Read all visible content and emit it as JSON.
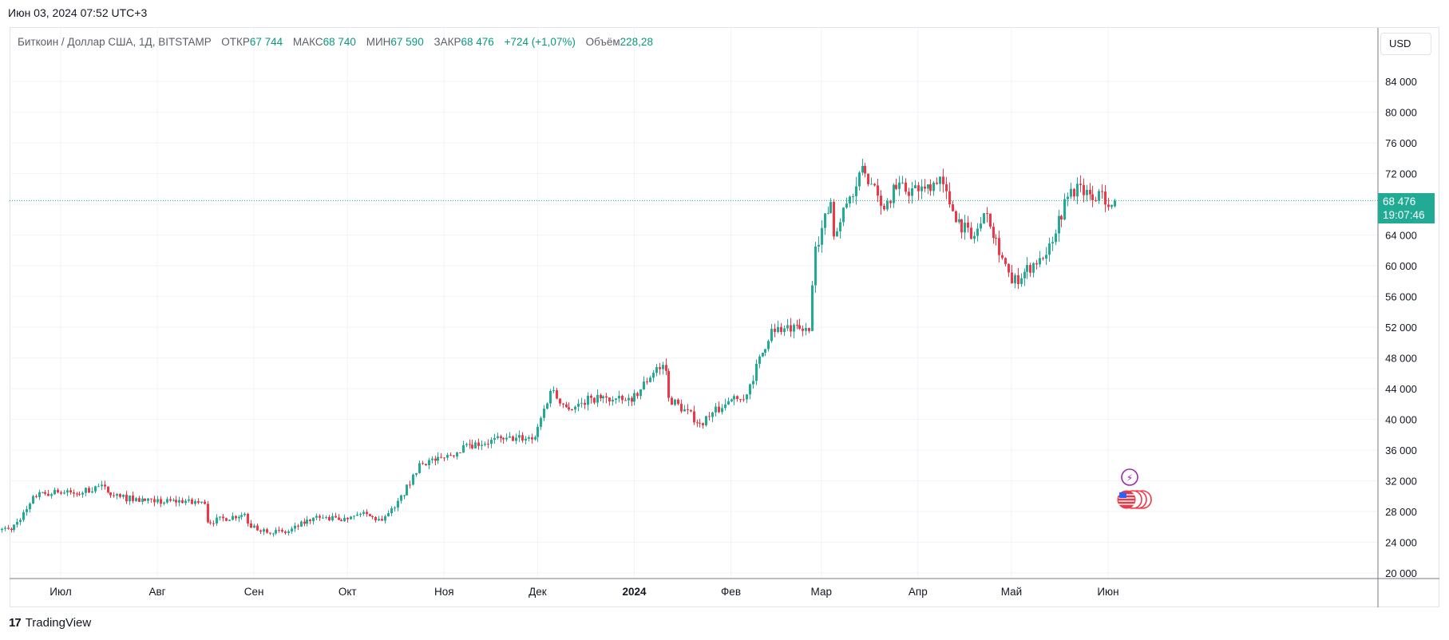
{
  "header": {
    "timestamp": "Июн 03, 2024 07:52 UTC+3"
  },
  "legend": {
    "symbol": "Биткоин / Доллар США, 1Д, BITSTAMP",
    "open_label": "ОТКР",
    "open_value": "67 744",
    "high_label": "МАКС",
    "high_value": "68 740",
    "low_label": "МИН",
    "low_value": "67 590",
    "close_label": "ЗАКР",
    "close_value": "68 476",
    "change": "+724 (+1,07%)",
    "volume_label": "Объём",
    "volume_value": "228,28"
  },
  "currency": "USD",
  "price_tag": {
    "price": "68 476",
    "countdown": "19:07:46"
  },
  "footer": {
    "brand": "TradingView"
  },
  "colors": {
    "up": "#22ab94",
    "down": "#f23645",
    "grid": "#f0f3fa",
    "axis_text": "#131722",
    "price_line": "#22ab94"
  },
  "chart_data": {
    "type": "candlestick",
    "title": "Биткоин / Доллар США, 1Д, BITSTAMP",
    "y_axis": {
      "min": 18000,
      "max": 88000,
      "ticks": [
        20000,
        24000,
        28000,
        32000,
        36000,
        40000,
        44000,
        48000,
        52000,
        56000,
        60000,
        64000,
        68000,
        72000,
        76000,
        80000,
        84000
      ],
      "tick_labels": [
        "20 000",
        "24 000",
        "28 000",
        "32 000",
        "36 000",
        "40 000",
        "44 000",
        "48 000",
        "52 000",
        "56 000",
        "60 000",
        "64 000",
        "68 000",
        "72 000",
        "76 000",
        "80 000",
        "84 000"
      ]
    },
    "x_axis": {
      "start": "2023-06-10",
      "end": "2024-06-03",
      "labels": [
        {
          "date": "2023-07-01",
          "text": "Июл",
          "bold": false
        },
        {
          "date": "2023-08-01",
          "text": "Авг",
          "bold": false
        },
        {
          "date": "2023-09-01",
          "text": "Сен",
          "bold": false
        },
        {
          "date": "2023-10-01",
          "text": "Окт",
          "bold": false
        },
        {
          "date": "2023-11-01",
          "text": "Ноя",
          "bold": false
        },
        {
          "date": "2023-12-01",
          "text": "Дек",
          "bold": false
        },
        {
          "date": "2024-01-01",
          "text": "2024",
          "bold": true
        },
        {
          "date": "2024-02-01",
          "text": "Фев",
          "bold": false
        },
        {
          "date": "2024-03-01",
          "text": "Мар",
          "bold": false
        },
        {
          "date": "2024-04-01",
          "text": "Апр",
          "bold": false
        },
        {
          "date": "2024-05-01",
          "text": "Май",
          "bold": false
        },
        {
          "date": "2024-06-01",
          "text": "Июн",
          "bold": false
        }
      ]
    },
    "close_anchors": [
      [
        "2023-06-10",
        25800
      ],
      [
        "2023-06-15",
        25600
      ],
      [
        "2023-06-20",
        28300
      ],
      [
        "2023-06-22",
        30000
      ],
      [
        "2023-06-30",
        30500
      ],
      [
        "2023-07-06",
        30300
      ],
      [
        "2023-07-13",
        31300
      ],
      [
        "2023-07-20",
        29900
      ],
      [
        "2023-07-31",
        29200
      ],
      [
        "2023-08-10",
        29400
      ],
      [
        "2023-08-16",
        29000
      ],
      [
        "2023-08-17",
        26600
      ],
      [
        "2023-08-29",
        27700
      ],
      [
        "2023-08-31",
        25900
      ],
      [
        "2023-09-11",
        25200
      ],
      [
        "2023-09-20",
        27200
      ],
      [
        "2023-10-01",
        27000
      ],
      [
        "2023-10-05",
        27700
      ],
      [
        "2023-10-12",
        26800
      ],
      [
        "2023-10-16",
        28500
      ],
      [
        "2023-10-23",
        33000
      ],
      [
        "2023-10-24",
        34300
      ],
      [
        "2023-11-01",
        35000
      ],
      [
        "2023-11-09",
        36700
      ],
      [
        "2023-11-20",
        37400
      ],
      [
        "2023-11-30",
        37700
      ],
      [
        "2023-12-05",
        43700
      ],
      [
        "2023-12-11",
        41300
      ],
      [
        "2023-12-18",
        42800
      ],
      [
        "2023-12-31",
        42300
      ],
      [
        "2024-01-08",
        46800
      ],
      [
        "2024-01-11",
        46300
      ],
      [
        "2024-01-12",
        42800
      ],
      [
        "2024-01-22",
        39500
      ],
      [
        "2024-02-01",
        42600
      ],
      [
        "2024-02-05",
        42600
      ],
      [
        "2024-02-14",
        51800
      ],
      [
        "2024-02-26",
        51500
      ],
      [
        "2024-02-28",
        62500
      ],
      [
        "2024-03-04",
        68300
      ],
      [
        "2024-03-05",
        63800
      ],
      [
        "2024-03-10",
        69000
      ],
      [
        "2024-03-14",
        73000
      ],
      [
        "2024-03-20",
        67800
      ],
      [
        "2024-03-25",
        70000
      ],
      [
        "2024-04-01",
        69700
      ],
      [
        "2024-04-08",
        71600
      ],
      [
        "2024-04-12",
        67100
      ],
      [
        "2024-04-18",
        63500
      ],
      [
        "2024-04-23",
        66800
      ],
      [
        "2024-05-01",
        57700
      ],
      [
        "2024-05-10",
        61000
      ],
      [
        "2024-05-13",
        62900
      ],
      [
        "2024-05-20",
        70000
      ],
      [
        "2024-05-26",
        69300
      ],
      [
        "2024-06-03",
        68476
      ]
    ],
    "last_candle": {
      "date": "2024-06-03",
      "open": 67744,
      "high": 68740,
      "low": 67590,
      "close": 68476
    },
    "current_price": 68476
  }
}
